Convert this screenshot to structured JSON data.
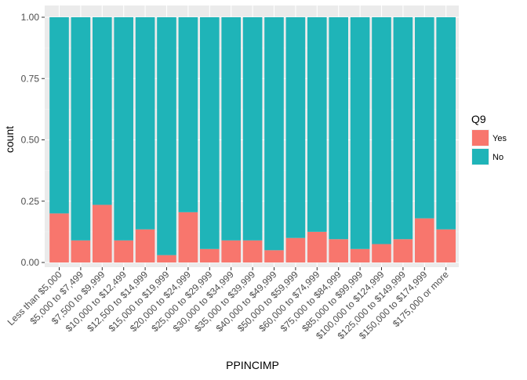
{
  "chart_data": {
    "type": "bar",
    "stacked": true,
    "xlabel": "PPINCIMP",
    "ylabel": "count",
    "ylim": [
      0,
      1
    ],
    "yticks": [
      "0.00",
      "0.25",
      "0.50",
      "0.75",
      "1.00"
    ],
    "grid": true,
    "legend_position": "right",
    "legend_title": "Q9",
    "categories": [
      "Less than $5,000",
      "$5,000 to $7,499",
      "$7,500 to $9,999",
      "$10,000 to $12,499",
      "$12,500 to $14,999",
      "$15,000 to $19,999",
      "$20,000 to $24,999",
      "$25,000 to $29,999",
      "$30,000 to $34,999",
      "$35,000 to $39,999",
      "$40,000 to $49,999",
      "$50,000 to $59,999",
      "$60,000 to $74,999",
      "$75,000 to $84,999",
      "$85,000 to $99,999",
      "$100,000 to $124,999",
      "$125,000 to $149,999",
      "$150,000 to $174,999",
      "$175,000 or more"
    ],
    "series": [
      {
        "name": "Yes",
        "color": "#F8766D",
        "values": [
          0.2,
          0.09,
          0.235,
          0.09,
          0.135,
          0.03,
          0.205,
          0.055,
          0.09,
          0.09,
          0.05,
          0.1,
          0.125,
          0.095,
          0.055,
          0.075,
          0.095,
          0.18,
          0.135
        ]
      },
      {
        "name": "No",
        "color": "#1FB4B8",
        "values": [
          0.8,
          0.91,
          0.765,
          0.91,
          0.865,
          0.97,
          0.795,
          0.945,
          0.91,
          0.91,
          0.95,
          0.9,
          0.875,
          0.905,
          0.945,
          0.925,
          0.905,
          0.82,
          0.865
        ]
      }
    ]
  }
}
